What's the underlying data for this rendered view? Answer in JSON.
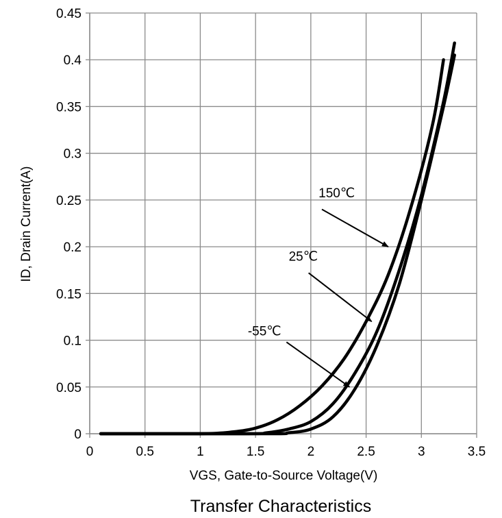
{
  "chart_data": {
    "type": "line",
    "title": "Transfer Characteristics",
    "xlabel": "VGS, Gate-to-Source Voltage(V)",
    "ylabel": "ID, Drain Current(A)",
    "xlim": [
      0,
      3.5
    ],
    "ylim": [
      0,
      0.45
    ],
    "x_ticks": [
      0,
      0.5,
      1,
      1.5,
      2,
      2.5,
      3,
      3.5
    ],
    "x_tick_labels": [
      "0",
      "0.5",
      "1",
      "1.5",
      "2",
      "2.5",
      "3",
      "3.5"
    ],
    "y_ticks": [
      0,
      0.05,
      0.1,
      0.15,
      0.2,
      0.25,
      0.3,
      0.35,
      0.4,
      0.45
    ],
    "y_tick_labels": [
      "0",
      "0.05",
      "0.1",
      "0.15",
      "0.2",
      "0.25",
      "0.3",
      "0.35",
      "0.4",
      "0.45"
    ],
    "grid": true,
    "legend": "none",
    "line_color": "#000000",
    "series": [
      {
        "name": "150℃",
        "x": [
          0.1,
          1.0,
          1.3,
          1.5,
          1.7,
          1.9,
          2.1,
          2.3,
          2.5,
          2.7,
          2.9,
          3.1,
          3.2
        ],
        "y": [
          0,
          0,
          0.002,
          0.006,
          0.015,
          0.03,
          0.051,
          0.08,
          0.12,
          0.17,
          0.24,
          0.33,
          0.4
        ]
      },
      {
        "name": "25℃",
        "x": [
          0.1,
          1.4,
          1.6,
          1.8,
          2.0,
          2.2,
          2.4,
          2.6,
          2.8,
          3.0,
          3.2,
          3.3
        ],
        "y": [
          0,
          0,
          0.001,
          0.005,
          0.013,
          0.032,
          0.065,
          0.11,
          0.175,
          0.255,
          0.355,
          0.418
        ]
      },
      {
        "name": "-55℃",
        "x": [
          0.1,
          1.6,
          1.8,
          2.0,
          2.2,
          2.4,
          2.6,
          2.8,
          3.0,
          3.2,
          3.3
        ],
        "y": [
          0,
          0,
          0.001,
          0.005,
          0.018,
          0.048,
          0.095,
          0.16,
          0.25,
          0.35,
          0.405
        ]
      }
    ],
    "annotations": [
      {
        "text": "150℃",
        "label_at": [
          2.07,
          0.253
        ],
        "arrow_from": [
          2.1,
          0.24
        ],
        "arrow_to": [
          2.7,
          0.2
        ]
      },
      {
        "text": "25℃",
        "label_at": [
          1.8,
          0.185
        ],
        "arrow_from": [
          1.98,
          0.172
        ],
        "arrow_to": [
          2.55,
          0.12
        ]
      },
      {
        "text": "-55℃",
        "label_at": [
          1.43,
          0.105
        ],
        "arrow_from": [
          1.78,
          0.098
        ],
        "arrow_to": [
          2.35,
          0.05
        ]
      }
    ]
  }
}
